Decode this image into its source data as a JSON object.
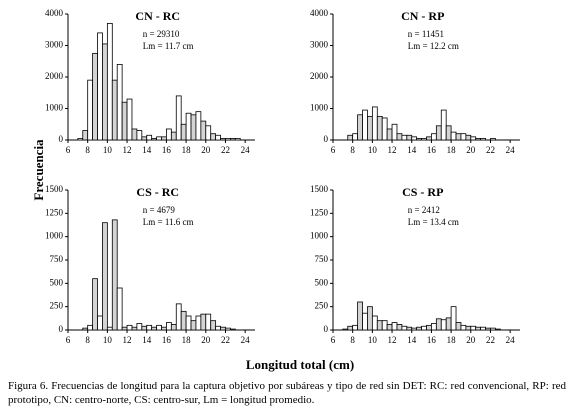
{
  "figure": {
    "ylabel": "Frecuencia",
    "xlabel": "Longitud total (cm)",
    "caption": "Figura 6. Frecuencias de longitud para la captura objetivo por subáreas y tipo de red sin DET: RC: red convencional, RP: red prototipo, CN: centro-norte, CS: centro-sur, Lm = longitud promedio."
  },
  "chart_data": [
    {
      "type": "bar",
      "title": "CN - RC",
      "annotations": [
        "n = 29310",
        "Lm = 11.7 cm"
      ],
      "x": [
        7,
        7.5,
        8,
        8.5,
        9,
        9.5,
        10,
        10.5,
        11,
        11.5,
        12,
        12.5,
        13,
        13.5,
        14,
        14.5,
        15,
        15.5,
        16,
        16.5,
        17,
        17.5,
        18,
        18.5,
        19,
        19.5,
        20,
        20.5,
        21,
        21.5,
        22,
        22.5,
        23
      ],
      "values": [
        50,
        300,
        1900,
        2750,
        3400,
        3050,
        3700,
        1900,
        2400,
        1200,
        1300,
        350,
        300,
        100,
        150,
        50,
        100,
        100,
        350,
        250,
        1400,
        500,
        850,
        800,
        900,
        600,
        450,
        200,
        150,
        50,
        50,
        50,
        50
      ],
      "colors": [
        "#ffffff",
        "#d4d4d4"
      ],
      "xlim": [
        6,
        25
      ],
      "xticks": [
        6,
        8,
        10,
        12,
        14,
        16,
        18,
        20,
        22,
        24
      ],
      "ylim": [
        0,
        4000
      ],
      "yticks": [
        0,
        1000,
        2000,
        3000,
        4000
      ]
    },
    {
      "type": "bar",
      "title": "CN - RP",
      "annotations": [
        "n = 11451",
        "Lm = 12.2 cm"
      ],
      "x": [
        7,
        7.5,
        8,
        8.5,
        9,
        9.5,
        10,
        10.5,
        11,
        11.5,
        12,
        12.5,
        13,
        13.5,
        14,
        14.5,
        15,
        15.5,
        16,
        16.5,
        17,
        17.5,
        18,
        18.5,
        19,
        19.5,
        20,
        20.5,
        21,
        21.5,
        22,
        22.5,
        23
      ],
      "values": [
        0,
        150,
        200,
        800,
        950,
        750,
        1050,
        750,
        700,
        350,
        500,
        200,
        150,
        150,
        100,
        50,
        50,
        100,
        200,
        450,
        950,
        450,
        250,
        200,
        200,
        150,
        100,
        50,
        50,
        0,
        50,
        0,
        0
      ],
      "colors": [
        "#ffffff",
        "#d4d4d4"
      ],
      "xlim": [
        6,
        25
      ],
      "xticks": [
        6,
        8,
        10,
        12,
        14,
        16,
        18,
        20,
        22,
        24
      ],
      "ylim": [
        0,
        4000
      ],
      "yticks": [
        0,
        1000,
        2000,
        3000,
        4000
      ]
    },
    {
      "type": "bar",
      "title": "CS - RC",
      "annotations": [
        "n = 4679",
        "Lm = 11.6 cm"
      ],
      "x": [
        7,
        7.5,
        8,
        8.5,
        9,
        9.5,
        10,
        10.5,
        11,
        11.5,
        12,
        12.5,
        13,
        13.5,
        14,
        14.5,
        15,
        15.5,
        16,
        16.5,
        17,
        17.5,
        18,
        18.5,
        19,
        19.5,
        20,
        20.5,
        21,
        21.5,
        22,
        22.5,
        23
      ],
      "values": [
        0,
        20,
        50,
        550,
        150,
        1150,
        30,
        1180,
        450,
        30,
        50,
        30,
        70,
        40,
        50,
        30,
        50,
        30,
        80,
        60,
        280,
        200,
        150,
        100,
        150,
        170,
        170,
        100,
        40,
        30,
        20,
        10,
        0
      ],
      "colors": [
        "#ffffff",
        "#d4d4d4"
      ],
      "xlim": [
        6,
        25
      ],
      "xticks": [
        6,
        8,
        10,
        12,
        14,
        16,
        18,
        20,
        22,
        24
      ],
      "ylim": [
        0,
        1500
      ],
      "yticks": [
        0,
        250,
        500,
        750,
        1000,
        1250,
        1500
      ]
    },
    {
      "type": "bar",
      "title": "CS - RP",
      "annotations": [
        "n = 2412",
        "Lm = 13.4 cm"
      ],
      "x": [
        7,
        7.5,
        8,
        8.5,
        9,
        9.5,
        10,
        10.5,
        11,
        11.5,
        12,
        12.5,
        13,
        13.5,
        14,
        14.5,
        15,
        15.5,
        16,
        16.5,
        17,
        17.5,
        18,
        18.5,
        19,
        19.5,
        20,
        20.5,
        21,
        21.5,
        22,
        22.5,
        23
      ],
      "values": [
        10,
        40,
        50,
        300,
        180,
        250,
        150,
        100,
        100,
        60,
        80,
        60,
        40,
        30,
        20,
        30,
        40,
        50,
        70,
        120,
        110,
        130,
        250,
        80,
        50,
        40,
        40,
        30,
        30,
        20,
        20,
        10,
        0
      ],
      "colors": [
        "#ffffff",
        "#d4d4d4"
      ],
      "xlim": [
        6,
        25
      ],
      "xticks": [
        6,
        8,
        10,
        12,
        14,
        16,
        18,
        20,
        22,
        24
      ],
      "ylim": [
        0,
        1500
      ],
      "yticks": [
        0,
        250,
        500,
        750,
        1000,
        1250,
        1500
      ]
    }
  ]
}
